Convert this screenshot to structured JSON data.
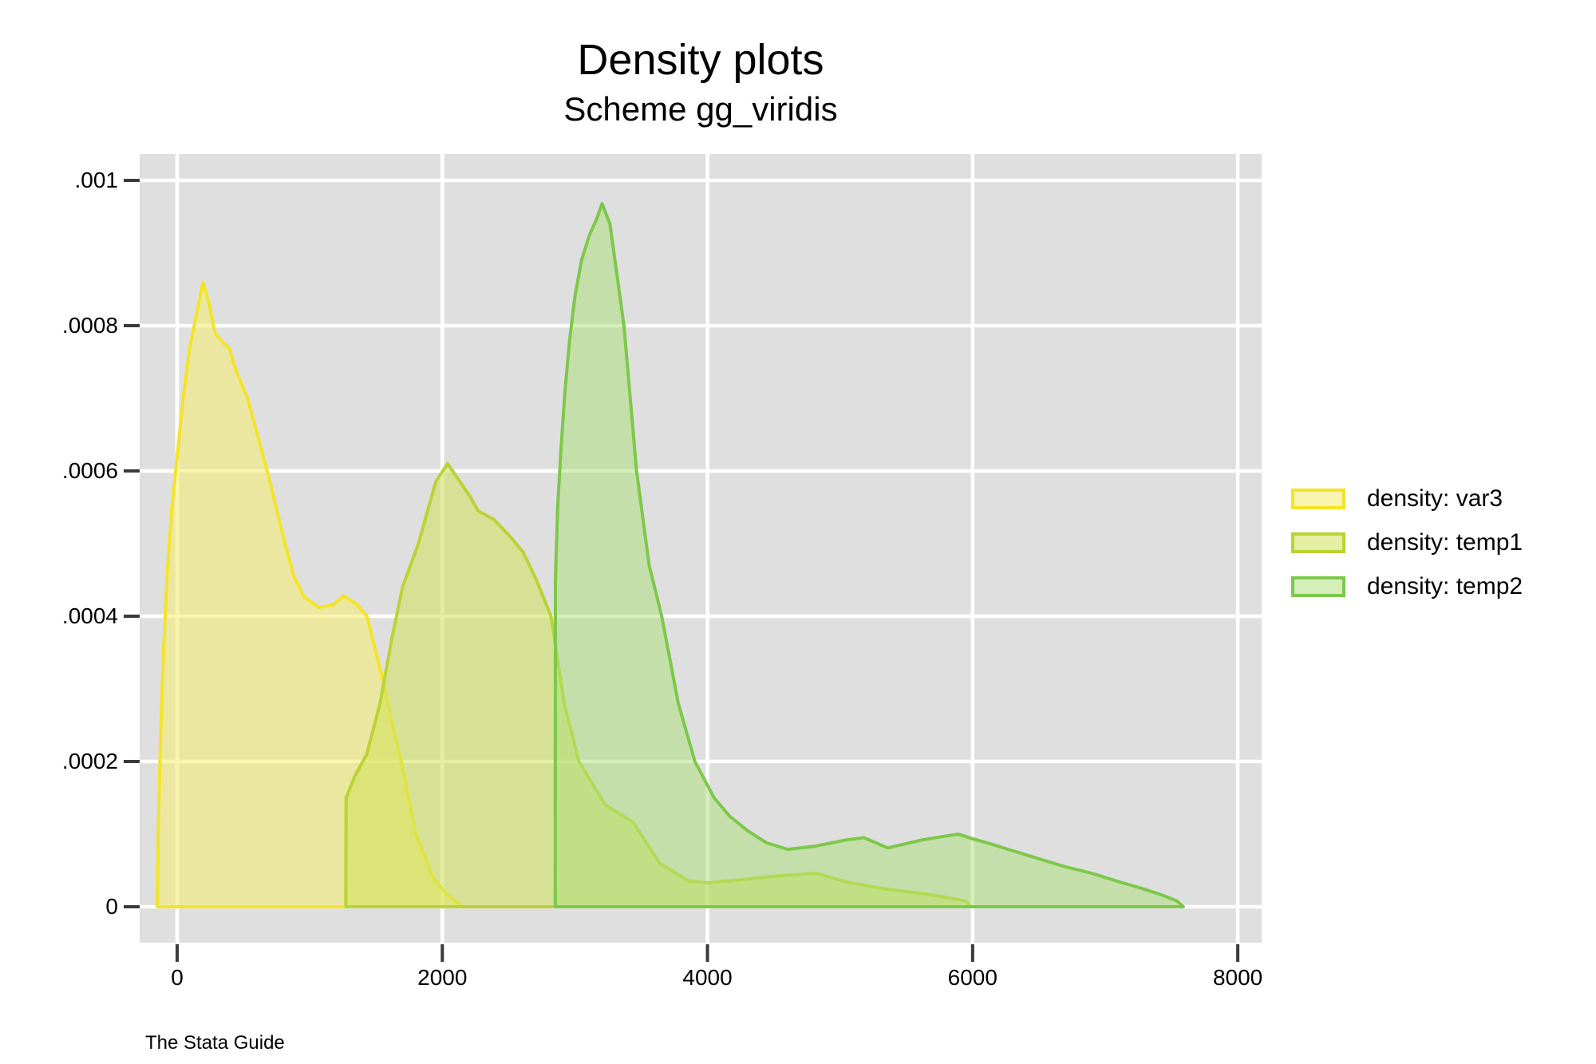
{
  "header": {
    "title": "Density plots",
    "subtitle": "Scheme gg_viridis"
  },
  "caption": "The Stata Guide",
  "legend": {
    "position": "right",
    "items": [
      {
        "label": "density: var3",
        "stroke": "#F4E429",
        "fill": "#F6EC6C",
        "fill_opacity": 0.55
      },
      {
        "label": "density: temp1",
        "stroke": "#BAD334",
        "fill": "#D0E158",
        "fill_opacity": 0.55
      },
      {
        "label": "density: temp2",
        "stroke": "#7DC84A",
        "fill": "#ABDF75",
        "fill_opacity": 0.5
      }
    ]
  },
  "chart_data": {
    "type": "area",
    "title": "Density plots",
    "subtitle": "Scheme gg_viridis",
    "xlabel": "",
    "ylabel": "",
    "grid": true,
    "legend_position": "right",
    "plot_background": "#DFDFDF",
    "gridline_color": "#FFFFFF",
    "tick_color": "#3A3A3A",
    "xlim": [
      -283,
      8180
    ],
    "ylim": [
      -4.95e-05,
      0.0010363
    ],
    "x_ticks": [
      0,
      2000,
      4000,
      6000,
      8000
    ],
    "x_tick_labels": [
      "0",
      "2000",
      "4000",
      "6000",
      "8000"
    ],
    "y_ticks": [
      0,
      0.0002,
      0.0004,
      0.0006,
      0.0008,
      0.001
    ],
    "y_tick_labels": [
      "0",
      ".0002",
      ".0004",
      ".0006",
      ".0008",
      ".001"
    ],
    "series": [
      {
        "name": "density: var3",
        "stroke": "#F4E429",
        "fill": "#F6EC6C",
        "fill_opacity": 0.55,
        "points": [
          [
            -150,
            0
          ],
          [
            -143,
            0.0001
          ],
          [
            -128,
            0.00022
          ],
          [
            -108,
            0.00033
          ],
          [
            -78,
            0.00045
          ],
          [
            -40,
            0.00055
          ],
          [
            0,
            0.00062
          ],
          [
            45,
            0.0007
          ],
          [
            95,
            0.00077
          ],
          [
            145,
            0.000815
          ],
          [
            195,
            0.00086
          ],
          [
            235,
            0.000835
          ],
          [
            285,
            0.00079
          ],
          [
            340,
            0.000778
          ],
          [
            395,
            0.000768
          ],
          [
            440,
            0.00074
          ],
          [
            530,
            0.0007
          ],
          [
            620,
            0.00064
          ],
          [
            700,
            0.000585
          ],
          [
            810,
            0.000502
          ],
          [
            880,
            0.000455
          ],
          [
            960,
            0.000426
          ],
          [
            1070,
            0.000412
          ],
          [
            1180,
            0.000416
          ],
          [
            1255,
            0.000428
          ],
          [
            1350,
            0.000417
          ],
          [
            1432,
            0.0004
          ],
          [
            1540,
            0.00032
          ],
          [
            1625,
            0.00025
          ],
          [
            1690,
            0.0002
          ],
          [
            1800,
            0.0001
          ],
          [
            1930,
            4e-05
          ],
          [
            2030,
            1.8e-05
          ],
          [
            2150,
            0
          ]
        ]
      },
      {
        "name": "density: temp1",
        "stroke": "#BAD334",
        "fill": "#D0E158",
        "fill_opacity": 0.55,
        "points": [
          [
            1272,
            0
          ],
          [
            1274,
            0.00015
          ],
          [
            1340,
            0.00018
          ],
          [
            1430,
            0.00021
          ],
          [
            1530,
            0.00028
          ],
          [
            1620,
            0.00037
          ],
          [
            1700,
            0.00044
          ],
          [
            1820,
            0.0005
          ],
          [
            1950,
            0.000585
          ],
          [
            2040,
            0.00061
          ],
          [
            2130,
            0.000586
          ],
          [
            2205,
            0.000566
          ],
          [
            2270,
            0.000545
          ],
          [
            2390,
            0.000533
          ],
          [
            2520,
            0.000508
          ],
          [
            2610,
            0.000488
          ],
          [
            2710,
            0.00045
          ],
          [
            2820,
            0.0004
          ],
          [
            2920,
            0.00028
          ],
          [
            3030,
            0.0002
          ],
          [
            3230,
            0.00014
          ],
          [
            3440,
            0.000116
          ],
          [
            3640,
            6e-05
          ],
          [
            3860,
            3.5e-05
          ],
          [
            4010,
            3.3e-05
          ],
          [
            4250,
            3.7e-05
          ],
          [
            4500,
            4.2e-05
          ],
          [
            4820,
            4.6e-05
          ],
          [
            5050,
            3.4e-05
          ],
          [
            5320,
            2.5e-05
          ],
          [
            5670,
            1.7e-05
          ],
          [
            5950,
            8e-06
          ],
          [
            5985,
            0
          ]
        ]
      },
      {
        "name": "density: temp2",
        "stroke": "#7DC84A",
        "fill": "#ABDF75",
        "fill_opacity": 0.5,
        "points": [
          [
            2852,
            0
          ],
          [
            2853,
            0.00045
          ],
          [
            2870,
            0.00055
          ],
          [
            2895,
            0.00063
          ],
          [
            2925,
            0.00071
          ],
          [
            2960,
            0.00078
          ],
          [
            3000,
            0.00084
          ],
          [
            3050,
            0.00089
          ],
          [
            3110,
            0.000925
          ],
          [
            3160,
            0.000945
          ],
          [
            3205,
            0.000968
          ],
          [
            3265,
            0.00094
          ],
          [
            3370,
            0.0008
          ],
          [
            3465,
            0.0006
          ],
          [
            3560,
            0.00047
          ],
          [
            3655,
            0.0004
          ],
          [
            3780,
            0.00028
          ],
          [
            3905,
            0.0002
          ],
          [
            4050,
            0.00015
          ],
          [
            4165,
            0.000125
          ],
          [
            4300,
            0.000105
          ],
          [
            4445,
            8.8e-05
          ],
          [
            4605,
            7.9e-05
          ],
          [
            4800,
            8.3e-05
          ],
          [
            5050,
            9.2e-05
          ],
          [
            5180,
            9.5e-05
          ],
          [
            5360,
            8.1e-05
          ],
          [
            5620,
            9.2e-05
          ],
          [
            5890,
            0.0001
          ],
          [
            6010,
            9.3e-05
          ],
          [
            6110,
            8.8e-05
          ],
          [
            6270,
            7.9e-05
          ],
          [
            6500,
            6.6e-05
          ],
          [
            6700,
            5.5e-05
          ],
          [
            6900,
            4.6e-05
          ],
          [
            7110,
            3.4e-05
          ],
          [
            7280,
            2.5e-05
          ],
          [
            7430,
            1.6e-05
          ],
          [
            7540,
            8e-06
          ],
          [
            7590,
            0
          ]
        ]
      }
    ]
  }
}
